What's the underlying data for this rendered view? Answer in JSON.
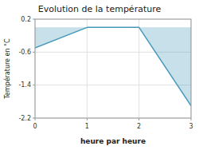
{
  "chart_data": {
    "type": "area",
    "title": "Evolution de la température",
    "xlabel": "heure par heure",
    "ylabel": "Température en °C",
    "x": [
      0,
      1,
      2,
      3
    ],
    "values": [
      -0.5,
      0.0,
      0.0,
      -1.9
    ],
    "color": "#4499bb",
    "xlim": [
      0,
      3
    ],
    "ylim": [
      -2.2,
      0.2
    ],
    "xticks": [
      0,
      1,
      2,
      3
    ],
    "yticks": [
      0.2,
      -0.6,
      -1.4,
      -2.2
    ],
    "grid": true
  }
}
